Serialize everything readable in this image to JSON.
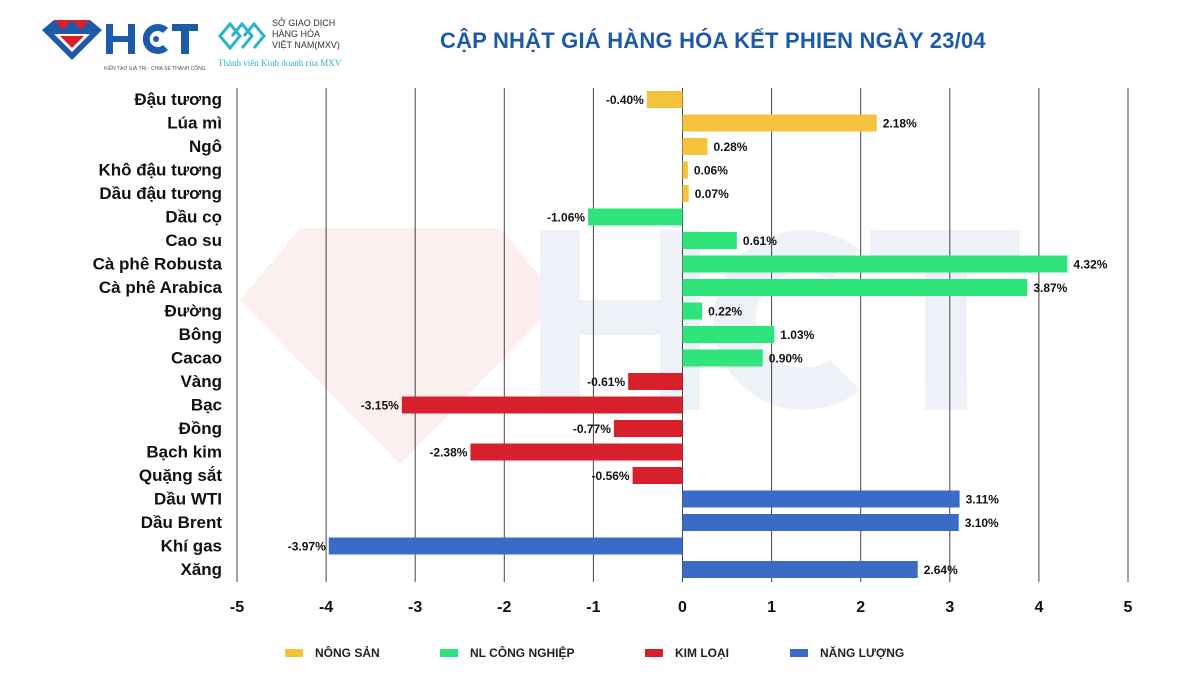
{
  "header": {
    "title": "CẬP NHẬT GIÁ HÀNG HÓA KẾT PHIEN NGÀY 23/04",
    "logo_hct": "HCT",
    "logo_hct_tagline": "KIẾN TẠO GIÁ TRỊ - CHIA SẺ THÀNH CÔNG",
    "logo_mxv_lines": [
      "SỞ GIAO DỊCH",
      "HÀNG HÓA",
      "VIỆT NAM(MXV)"
    ],
    "logo_mxv_sub": "Thành viên Kinh doanh của MXV"
  },
  "watermark": {
    "text": "HCT",
    "tagline": "KIẾN TẠO GIÁ TRỊ - CHIA SẺ THÀNH CÔNG"
  },
  "chart_data": {
    "type": "bar",
    "orientation": "horizontal",
    "title": "CẬP NHẬT GIÁ HÀNG HÓA KẾT PHIEN NGÀY 23/04",
    "xlim": [
      -5,
      5
    ],
    "xticks": [
      -5,
      -4,
      -3,
      -2,
      -1,
      0,
      1,
      2,
      3,
      4,
      5
    ],
    "grid": "vertical",
    "legend_position": "bottom",
    "groups": [
      {
        "name": "NÔNG SẢN",
        "color": "#f5c23c"
      },
      {
        "name": "NL CÔNG NGHIỆP",
        "color": "#2fe57b"
      },
      {
        "name": "KIM LOẠI",
        "color": "#d81f2c"
      },
      {
        "name": "NĂNG LƯỢNG",
        "color": "#3a6bc6"
      }
    ],
    "items": [
      {
        "category": "Đậu tương",
        "value": -0.4,
        "label": "-0.40%",
        "group": 0
      },
      {
        "category": "Lúa mì",
        "value": 2.18,
        "label": "2.18%",
        "group": 0
      },
      {
        "category": "Ngô",
        "value": 0.28,
        "label": "0.28%",
        "group": 0
      },
      {
        "category": "Khô đậu tương",
        "value": 0.06,
        "label": "0.06%",
        "group": 0
      },
      {
        "category": "Dầu đậu tương",
        "value": 0.07,
        "label": "0.07%",
        "group": 0
      },
      {
        "category": "Dầu cọ",
        "value": -1.06,
        "label": "-1.06%",
        "group": 1
      },
      {
        "category": "Cao su",
        "value": 0.61,
        "label": "0.61%",
        "group": 1
      },
      {
        "category": "Cà phê Robusta",
        "value": 4.32,
        "label": "4.32%",
        "group": 1
      },
      {
        "category": "Cà phê Arabica",
        "value": 3.87,
        "label": "3.87%",
        "group": 1
      },
      {
        "category": "Đường",
        "value": 0.22,
        "label": "0.22%",
        "group": 1
      },
      {
        "category": "Bông",
        "value": 1.03,
        "label": "1.03%",
        "group": 1
      },
      {
        "category": "Cacao",
        "value": 0.9,
        "label": "0.90%",
        "group": 1
      },
      {
        "category": "Vàng",
        "value": -0.61,
        "label": "-0.61%",
        "group": 2
      },
      {
        "category": "Bạc",
        "value": -3.15,
        "label": "-3.15%",
        "group": 2
      },
      {
        "category": "Đồng",
        "value": -0.77,
        "label": "-0.77%",
        "group": 2
      },
      {
        "category": "Bạch kim",
        "value": -2.38,
        "label": "-2.38%",
        "group": 2
      },
      {
        "category": "Quặng sắt",
        "value": -0.56,
        "label": "-0.56%",
        "group": 2
      },
      {
        "category": "Dầu WTI",
        "value": 3.11,
        "label": "3.11%",
        "group": 3
      },
      {
        "category": "Dầu Brent",
        "value": 3.1,
        "label": "3.10%",
        "group": 3
      },
      {
        "category": "Khí gas",
        "value": -3.97,
        "label": "-3.97%",
        "group": 3
      },
      {
        "category": "Xăng",
        "value": 2.64,
        "label": "2.64%",
        "group": 3
      }
    ]
  }
}
